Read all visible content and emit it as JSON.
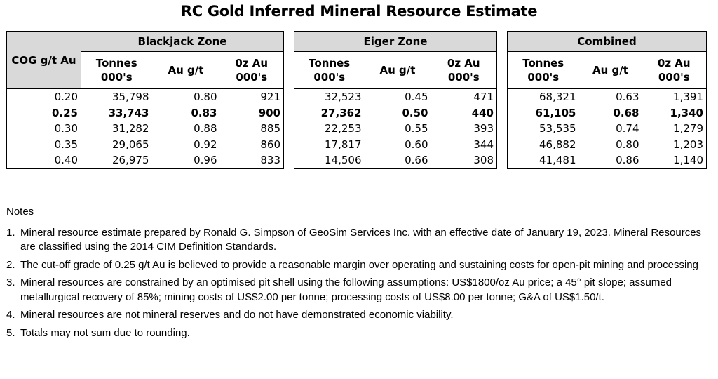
{
  "title": "RC Gold Inferred Mineral Resource Estimate",
  "table": {
    "cog_header": "COG g/t Au",
    "zones": [
      "Blackjack Zone",
      "Eiger Zone",
      "Combined"
    ],
    "sub_headers": {
      "tonnes_line1": "Tonnes",
      "tonnes_line2": "000's",
      "grade": "Au g/t",
      "oz_line1": "0z Au",
      "oz_line2": "000's"
    },
    "rows": [
      {
        "cog": "0.20",
        "bj_t": "35,798",
        "bj_g": "0.80",
        "bj_oz": "921",
        "ei_t": "32,523",
        "ei_g": "0.45",
        "ei_oz": "471",
        "co_t": "68,321",
        "co_g": "0.63",
        "co_oz": "1,391"
      },
      {
        "cog": "0.25",
        "bj_t": "33,743",
        "bj_g": "0.83",
        "bj_oz": "900",
        "ei_t": "27,362",
        "ei_g": "0.50",
        "ei_oz": "440",
        "co_t": "61,105",
        "co_g": "0.68",
        "co_oz": "1,340"
      },
      {
        "cog": "0.30",
        "bj_t": "31,282",
        "bj_g": "0.88",
        "bj_oz": "885",
        "ei_t": "22,253",
        "ei_g": "0.55",
        "ei_oz": "393",
        "co_t": "53,535",
        "co_g": "0.74",
        "co_oz": "1,279"
      },
      {
        "cog": "0.35",
        "bj_t": "29,065",
        "bj_g": "0.92",
        "bj_oz": "860",
        "ei_t": "17,817",
        "ei_g": "0.60",
        "ei_oz": "344",
        "co_t": "46,882",
        "co_g": "0.80",
        "co_oz": "1,203"
      },
      {
        "cog": "0.40",
        "bj_t": "26,975",
        "bj_g": "0.96",
        "bj_oz": "833",
        "ei_t": "14,506",
        "ei_g": "0.66",
        "ei_oz": "308",
        "co_t": "41,481",
        "co_g": "0.86",
        "co_oz": "1,140"
      }
    ]
  },
  "notes": {
    "heading": "Notes",
    "items": [
      {
        "n": "1.",
        "text": "Mineral resource estimate prepared by Ronald G. Simpson of GeoSim Services Inc. with an effective date of January 19, 2023. Mineral Resources are classified using the 2014 CIM Definition Standards."
      },
      {
        "n": "2.",
        "text": "The cut-off grade of 0.25 g/t Au is believed to provide a reasonable margin over operating and sustaining costs for open-pit mining and processing"
      },
      {
        "n": "3.",
        "text": "Mineral resources are constrained by an optimised pit shell using the following assumptions: US$1800/oz Au price; a 45° pit slope; assumed metallurgical recovery of 85%; mining costs of US$2.00 per tonne; processing costs of US$8.00 per tonne; G&A of US$1.50/t."
      },
      {
        "n": "4.",
        "text": "Mineral resources are not mineral reserves and do not have demonstrated economic viability."
      },
      {
        "n": "5.",
        "text": "Totals may not sum due to rounding."
      }
    ]
  }
}
